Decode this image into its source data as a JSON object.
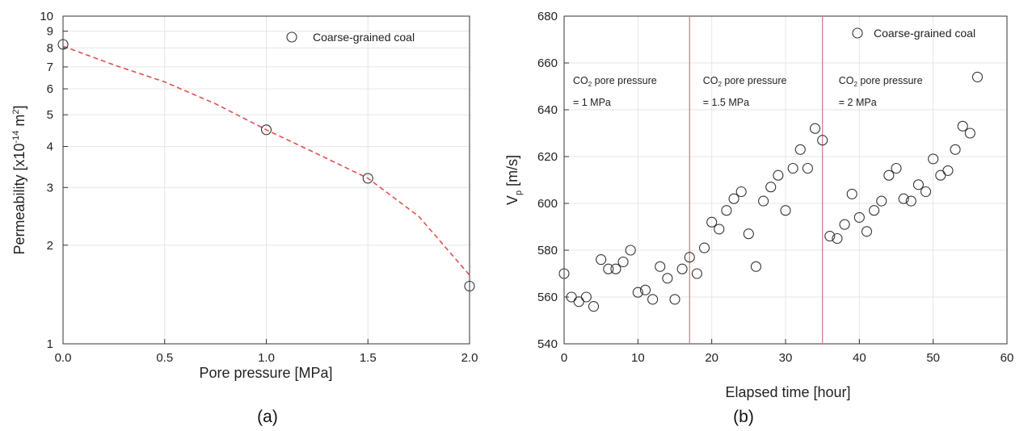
{
  "chart_data": [
    {
      "type": "scatter",
      "panel_label": "(a)",
      "xlabel": "Pore pressure [MPa]",
      "ylabel": "Permeability [x10^-14 m^2]",
      "ylabel_parts": {
        "main": "Permeability [x10",
        "exp1": "-14",
        "mid": " m",
        "exp2": "2",
        "end": "]"
      },
      "xlim": [
        0,
        2
      ],
      "ylim": [
        1,
        10
      ],
      "y_scale": "log",
      "x_ticks": [
        0,
        0.5,
        1.0,
        1.5,
        2.0
      ],
      "x_tick_labels": [
        "0.0",
        "0.5",
        "1.0",
        "1.5",
        "2.0"
      ],
      "y_ticks": [
        1,
        2,
        3,
        4,
        5,
        6,
        7,
        8,
        9,
        10
      ],
      "y_tick_labels": [
        "1",
        "2",
        "3",
        "4",
        "5",
        "6",
        "7",
        "8",
        "9",
        "10"
      ],
      "grid": true,
      "legend_position": "top-right",
      "series": [
        {
          "name": "Coarse-grained coal",
          "marker": "open-circle",
          "x": [
            0.0,
            1.0,
            1.5,
            2.0
          ],
          "y": [
            8.2,
            4.5,
            3.2,
            1.5
          ]
        }
      ],
      "fit_line": {
        "style": "dashed",
        "color": "#e05050",
        "x": [
          0,
          0.25,
          0.5,
          0.75,
          1.0,
          1.25,
          1.5,
          1.75,
          2.0
        ],
        "y": [
          8.1,
          7.1,
          6.3,
          5.4,
          4.5,
          3.8,
          3.2,
          2.45,
          1.62
        ]
      }
    },
    {
      "type": "scatter",
      "panel_label": "(b)",
      "xlabel": "Elapsed time [hour]",
      "ylabel": "Vp [m/s]",
      "ylabel_parts": {
        "main": "V",
        "sub": "p",
        "end": " [m/s]"
      },
      "xlim": [
        0,
        60
      ],
      "ylim": [
        540,
        680
      ],
      "x_ticks": [
        0,
        10,
        20,
        30,
        40,
        50,
        60
      ],
      "y_ticks": [
        540,
        560,
        580,
        600,
        620,
        640,
        660,
        680
      ],
      "grid": true,
      "legend_position": "top-right",
      "vlines": [
        17,
        35
      ],
      "vline_color": "#d77d8e",
      "annotations": [
        {
          "x": 1.2,
          "line1_pre": "CO",
          "line1_sub": "2",
          "line1_post": " pore pressure",
          "line2": "= 1 MPa"
        },
        {
          "x": 18.8,
          "line1_pre": "CO",
          "line1_sub": "2",
          "line1_post": " pore pressure",
          "line2": "= 1.5 MPa"
        },
        {
          "x": 37.2,
          "line1_pre": "CO",
          "line1_sub": "2",
          "line1_post": " pore pressure",
          "line2": "= 2 MPa"
        }
      ],
      "series": [
        {
          "name": "Coarse-grained coal",
          "marker": "open-circle",
          "x": [
            0,
            1,
            2,
            3,
            4,
            5,
            6,
            7,
            8,
            9,
            10,
            11,
            12,
            13,
            14,
            15,
            16,
            17,
            18,
            19,
            20,
            21,
            22,
            23,
            24,
            25,
            26,
            27,
            28,
            29,
            30,
            31,
            32,
            33,
            34,
            35,
            36,
            37,
            38,
            39,
            40,
            41,
            42,
            43,
            44,
            45,
            46,
            47,
            48,
            49,
            50,
            51,
            52,
            53,
            54,
            55,
            56
          ],
          "y": [
            570,
            560,
            558,
            560,
            556,
            576,
            572,
            572,
            575,
            580,
            562,
            563,
            559,
            573,
            568,
            559,
            572,
            577,
            570,
            581,
            592,
            589,
            597,
            602,
            605,
            587,
            573,
            601,
            607,
            612,
            597,
            615,
            623,
            615,
            632,
            627,
            586,
            585,
            591,
            604,
            594,
            588,
            597,
            601,
            612,
            615,
            602,
            601,
            608,
            605,
            619,
            612,
            614,
            623,
            633,
            630,
            654
          ]
        }
      ]
    }
  ]
}
